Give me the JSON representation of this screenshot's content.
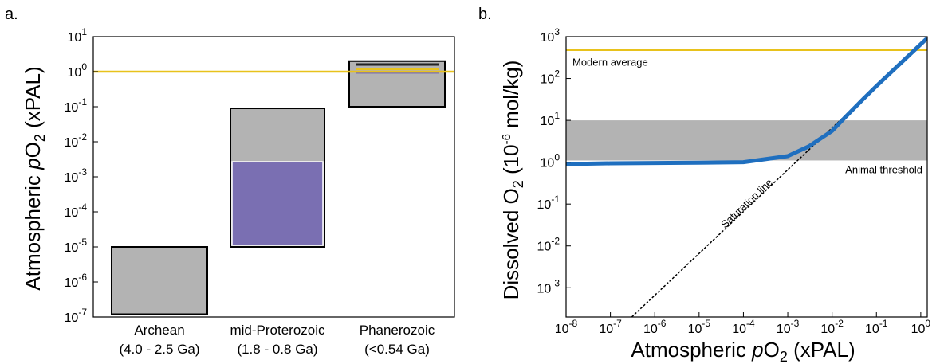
{
  "chart_data": [
    {
      "panel_label": "a.",
      "type": "bar",
      "y_scale": "log",
      "ylim": [
        1e-07,
        10
      ],
      "ylabel": {
        "prefix": "Atmospheric ",
        "italic": "p",
        "main": "O",
        "sub": "2",
        "suffix": " (xPAL)"
      },
      "yticks": [
        {
          "base": "10",
          "exp": "1"
        },
        {
          "base": "10",
          "exp": "0"
        },
        {
          "base": "10",
          "exp": "-1"
        },
        {
          "base": "10",
          "exp": "-2"
        },
        {
          "base": "10",
          "exp": "-3"
        },
        {
          "base": "10",
          "exp": "-4"
        },
        {
          "base": "10",
          "exp": "-5"
        },
        {
          "base": "10",
          "exp": "-6"
        },
        {
          "base": "10",
          "exp": "-7"
        }
      ],
      "categories": [
        {
          "name": "Archean",
          "range": "(4.0 - 2.5 Ga)"
        },
        {
          "name": "mid-Proterozoic",
          "range": "(1.8 - 0.8 Ga)"
        },
        {
          "name": "Phanerozoic",
          "range": "(<0.54 Ga)"
        }
      ],
      "ranges": [
        {
          "category": 0,
          "low": 1.2e-07,
          "high": 1e-05,
          "color": "#b3b3b3"
        },
        {
          "category": 1,
          "low": 1e-05,
          "high": 0.09,
          "color": "#b3b3b3"
        },
        {
          "category": 2,
          "low": 0.1,
          "high": 2.0,
          "color": "#b3b3b3"
        }
      ],
      "inner_ranges": [
        {
          "category": 1,
          "low": 1e-05,
          "high": 0.0027,
          "color": "#7a6fb2"
        }
      ],
      "inner_lines": [
        {
          "category": 2,
          "value": 1.6,
          "color": "#222222"
        },
        {
          "category": 2,
          "value": 1.2,
          "color": "#e8c21c"
        },
        {
          "category": 2,
          "value": 0.95,
          "color": "#7a6fb2"
        }
      ],
      "reference_line": {
        "value": 1.0,
        "color": "#e8c21c"
      }
    },
    {
      "panel_label": "b.",
      "type": "line",
      "x_scale": "log",
      "y_scale": "log",
      "xlim": [
        1e-08,
        1.4
      ],
      "ylim": [
        0.0002,
        1000
      ],
      "xlabel": {
        "prefix": "Atmospheric ",
        "italic": "p",
        "main": "O",
        "sub": "2",
        "suffix": " (xPAL)"
      },
      "ylabel": {
        "prefix": "Dissolved  ",
        "main": "O",
        "sub": "2",
        "unit_open": " (10",
        "unit_exp": "-6",
        "unit_close": " mol/kg)"
      },
      "xticks": [
        {
          "base": "10",
          "exp": "-8"
        },
        {
          "base": "10",
          "exp": "-7"
        },
        {
          "base": "10",
          "exp": "-6"
        },
        {
          "base": "10",
          "exp": "-5"
        },
        {
          "base": "10",
          "exp": "-4"
        },
        {
          "base": "10",
          "exp": "-3"
        },
        {
          "base": "10",
          "exp": "-2"
        },
        {
          "base": "10",
          "exp": "-1"
        },
        {
          "base": "10",
          "exp": "0"
        }
      ],
      "yticks": [
        {
          "base": "10",
          "exp": "3"
        },
        {
          "base": "10",
          "exp": "2"
        },
        {
          "base": "10",
          "exp": "1"
        },
        {
          "base": "10",
          "exp": "0"
        },
        {
          "base": "10",
          "exp": "-1"
        },
        {
          "base": "10",
          "exp": "-2"
        },
        {
          "base": "10",
          "exp": "-3"
        }
      ],
      "band": {
        "low": 1.1,
        "high": 10,
        "color": "#b3b3b3",
        "label": "Animal threshold"
      },
      "modern_average": {
        "value": 480,
        "color": "#e8c21c",
        "label": "Modern average"
      },
      "saturation_line": {
        "label": "Saturation line",
        "slope_per_xpal": 660,
        "color": "#000000"
      },
      "series": [
        {
          "color": "#1f6fbf",
          "x": [
            1e-08,
            1e-07,
            1e-06,
            1e-05,
            0.0001,
            0.001,
            0.003,
            0.01,
            0.02,
            0.05,
            0.1,
            0.3,
            1.0,
            1.3
          ],
          "y": [
            0.9,
            0.94,
            0.96,
            0.97,
            1.0,
            1.4,
            2.4,
            5.6,
            12,
            32,
            66,
            198,
            660,
            858
          ]
        }
      ]
    }
  ]
}
